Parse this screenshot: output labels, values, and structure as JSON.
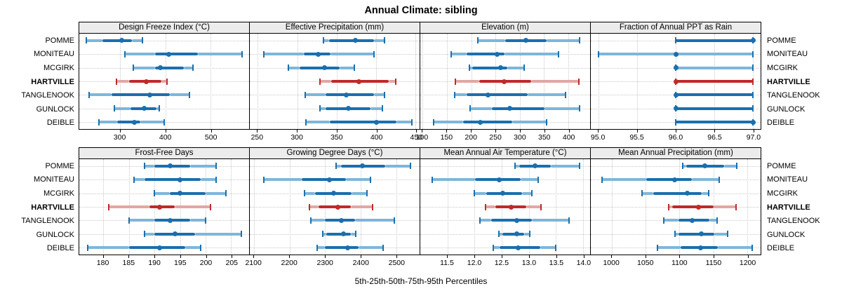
{
  "title": "Annual Climate: sibling",
  "caption": "5th-25th-50th-75th-95th Percentiles",
  "colors": {
    "normal": "#1a6fae",
    "normal_light": "#7eb6da",
    "highlight": "#bf2a2a",
    "highlight_light": "#e3a6a2",
    "grid": "#c9c9c9",
    "strip_bg": "#ececec",
    "border": "#000000"
  },
  "chart_data": {
    "type": "dotplot-percentiles",
    "percentile_labels": [
      "5th",
      "25th",
      "50th",
      "75th",
      "95th"
    ],
    "sites": [
      "POMME",
      "MONITEAU",
      "MCGIRK",
      "HARTVILLE",
      "TANGLENOOK",
      "GUNLOCK",
      "DEIBLE"
    ],
    "highlight_site": "HARTVILLE",
    "legend_note": "rows repeated on left and right; highlighted site in bold/red",
    "panels": [
      {
        "row": 1,
        "label": "Design Freeze Index (°C)",
        "axis": {
          "min": 210,
          "max": 585,
          "ticks": [
            300,
            400,
            500
          ],
          "tick_labels": [
            "300",
            "400",
            "500"
          ]
        },
        "values": {
          "POMME": [
            226,
            261,
            303,
            326,
            350
          ],
          "MONITEAU": [
            310,
            378,
            408,
            472,
            569
          ],
          "MCGIRK": [
            329,
            377,
            389,
            441,
            461
          ],
          "HARTVILLE": [
            292,
            320,
            358,
            392,
            404
          ],
          "TANGLENOOK": [
            232,
            282,
            366,
            410,
            453
          ],
          "GUNLOCK": [
            288,
            323,
            354,
            381,
            386
          ],
          "DEIBLE": [
            253,
            294,
            332,
            345,
            398
          ]
        }
      },
      {
        "row": 1,
        "label": "Effective Precipitation (mm)",
        "axis": {
          "min": 240,
          "max": 455,
          "ticks": [
            250,
            300,
            350,
            400,
            450
          ],
          "tick_labels": [
            "250",
            "300",
            "350",
            "400",
            "450"
          ]
        },
        "values": {
          "POMME": [
            333,
            340,
            374,
            397,
            411
          ],
          "MONITEAU": [
            258,
            308,
            327,
            342,
            397
          ],
          "MCGIRK": [
            289,
            303,
            335,
            354,
            372
          ],
          "HARTVILLE": [
            329,
            343,
            378,
            416,
            425
          ],
          "TANGLENOOK": [
            310,
            336,
            362,
            397,
            411
          ],
          "GUNLOCK": [
            329,
            336,
            365,
            393,
            408
          ],
          "DEIBLE": [
            311,
            341,
            400,
            426,
            445
          ]
        }
      },
      {
        "row": 1,
        "label": "Elevation (m)",
        "axis": {
          "min": 95,
          "max": 445,
          "ticks": [
            100,
            150,
            200,
            250,
            300,
            350,
            400
          ],
          "tick_labels": [
            "100",
            "150",
            "200",
            "250",
            "300",
            "350",
            "400"
          ]
        },
        "values": {
          "POMME": [
            213,
            270,
            312,
            356,
            424
          ],
          "MONITEAU": [
            159,
            190,
            254,
            268,
            380
          ],
          "MCGIRK": [
            196,
            202,
            260,
            275,
            309
          ],
          "HARTVILLE": [
            168,
            217,
            268,
            323,
            422
          ],
          "TANGLENOOK": [
            166,
            190,
            235,
            316,
            394
          ],
          "GUNLOCK": [
            197,
            242,
            280,
            351,
            423
          ],
          "DEIBLE": [
            123,
            183,
            219,
            285,
            356
          ]
        }
      },
      {
        "row": 1,
        "label": "Fraction of Annual PPT as Rain",
        "axis": {
          "min": 94.9,
          "max": 97.1,
          "ticks": [
            95.0,
            95.5,
            96.0,
            96.5,
            97.0
          ],
          "tick_labels": [
            "95.0",
            "95.5",
            "96.0",
            "96.5",
            "97.0"
          ]
        },
        "values": {
          "POMME": [
            96,
            96,
            97,
            97,
            97
          ],
          "MONITEAU": [
            95,
            96,
            96,
            96,
            97
          ],
          "MCGIRK": [
            96,
            96,
            96,
            96,
            97
          ],
          "HARTVILLE": [
            96,
            96,
            96,
            97,
            97
          ],
          "TANGLENOOK": [
            96,
            96,
            96,
            97,
            97
          ],
          "GUNLOCK": [
            96,
            96,
            96,
            97,
            97
          ],
          "DEIBLE": [
            96,
            96,
            97,
            97,
            97
          ]
        }
      },
      {
        "row": 2,
        "label": "Frost-Free Days",
        "axis": {
          "min": 175.3,
          "max": 208.5,
          "ticks": [
            180,
            185,
            190,
            195,
            200,
            205
          ],
          "tick_labels": [
            "180",
            "185",
            "190",
            "195",
            "200",
            "205"
          ]
        },
        "values": {
          "POMME": [
            188,
            190,
            193,
            197,
            202
          ],
          "MONITEAU": [
            186,
            188,
            195,
            199,
            202
          ],
          "MCGIRK": [
            190,
            193,
            195,
            200,
            204
          ],
          "HARTVILLE": [
            181,
            189,
            191,
            194,
            201
          ],
          "TANGLENOOK": [
            185,
            190,
            193,
            197,
            200
          ],
          "GUNLOCK": [
            188,
            190,
            194,
            198,
            207
          ],
          "DEIBLE": [
            177,
            185,
            191,
            196,
            199
          ]
        }
      },
      {
        "row": 2,
        "label": "Growing Degree Days (°C)",
        "axis": {
          "min": 2088,
          "max": 2566,
          "ticks": [
            2100,
            2200,
            2300,
            2400,
            2500
          ],
          "tick_labels": [
            "2100",
            "2200",
            "2300",
            "2400",
            "2500"
          ]
        },
        "values": {
          "POMME": [
            2330,
            2345,
            2405,
            2470,
            2541
          ],
          "MONITEAU": [
            2127,
            2235,
            2312,
            2358,
            2427
          ],
          "MCGIRK": [
            2242,
            2271,
            2325,
            2375,
            2417
          ],
          "HARTVILLE": [
            2256,
            2281,
            2336,
            2372,
            2434
          ],
          "TANGLENOOK": [
            2260,
            2300,
            2345,
            2384,
            2495
          ],
          "GUNLOCK": [
            2294,
            2303,
            2351,
            2372,
            2386
          ],
          "DEIBLE": [
            2277,
            2300,
            2364,
            2394,
            2464
          ]
        }
      },
      {
        "row": 2,
        "label": "Mean Annual Air Temperature (°C)",
        "axis": {
          "min": 11.0,
          "max": 14.13,
          "ticks": [
            11.5,
            12.0,
            12.5,
            13.0,
            13.5,
            14.0
          ],
          "tick_labels": [
            "11.5",
            "12.0",
            "12.5",
            "13.0",
            "13.5",
            "14.0"
          ]
        },
        "values": {
          "POMME": [
            12.74,
            12.82,
            13.11,
            13.4,
            13.94
          ],
          "MONITEAU": [
            11.22,
            12.01,
            12.46,
            12.85,
            13.17
          ],
          "MCGIRK": [
            12.0,
            12.22,
            12.52,
            12.88,
            13.06
          ],
          "HARTVILLE": [
            12.2,
            12.39,
            12.68,
            12.95,
            13.23
          ],
          "TANGLENOOK": [
            12.1,
            12.31,
            12.78,
            13.06,
            13.74
          ],
          "GUNLOCK": [
            12.45,
            12.51,
            12.78,
            12.91,
            13.02
          ],
          "DEIBLE": [
            12.34,
            12.46,
            12.8,
            13.21,
            13.5
          ]
        }
      },
      {
        "row": 2,
        "label": "Mean Annual Precipitation (mm)",
        "axis": {
          "min": 969,
          "max": 1220,
          "ticks": [
            1000,
            1050,
            1100,
            1150,
            1200
          ],
          "tick_labels": [
            "1000",
            "1050",
            "1100",
            "1150",
            "1200"
          ]
        },
        "values": {
          "POMME": [
            1105,
            1110,
            1138,
            1166,
            1185
          ],
          "MONITEAU": [
            986,
            1051,
            1093,
            1118,
            1159
          ],
          "MCGIRK": [
            1045,
            1061,
            1112,
            1133,
            1143
          ],
          "HARTVILLE": [
            1084,
            1089,
            1128,
            1151,
            1184
          ],
          "TANGLENOOK": [
            1077,
            1099,
            1119,
            1144,
            1156
          ],
          "GUNLOCK": [
            1093,
            1099,
            1132,
            1152,
            1171
          ],
          "DEIBLE": [
            1068,
            1102,
            1131,
            1157,
            1208
          ]
        }
      }
    ]
  }
}
